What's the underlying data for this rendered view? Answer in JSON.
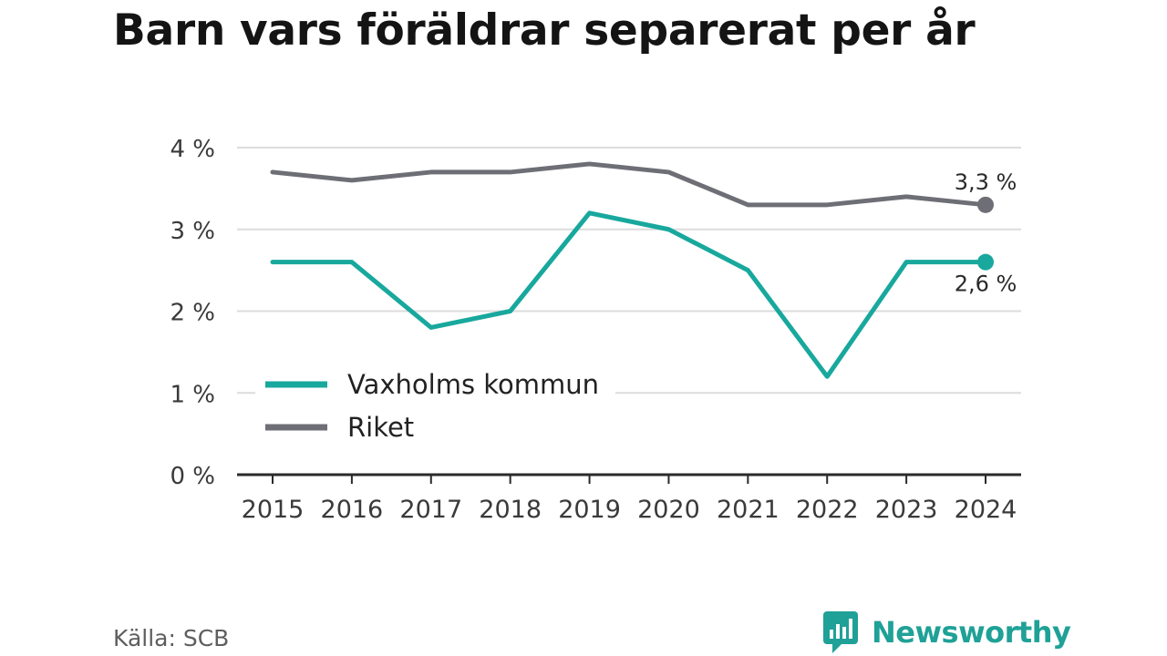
{
  "title": "Barn vars föräldrar separerat per år",
  "source": "Källa: SCB",
  "brand": {
    "name": "Newsworthy",
    "icon": "newsworthy-bar-chart-icon",
    "color": "#1fa197"
  },
  "chart_data": {
    "type": "line",
    "title": "Barn vars föräldrar separerat per år",
    "xlabel": "",
    "ylabel": "",
    "x": [
      "2015",
      "2016",
      "2017",
      "2018",
      "2019",
      "2020",
      "2021",
      "2022",
      "2023",
      "2024"
    ],
    "ylim": [
      0,
      4
    ],
    "y_ticks": [
      {
        "value": 0,
        "label": "0 %"
      },
      {
        "value": 1,
        "label": "1 %"
      },
      {
        "value": 2,
        "label": "2 %"
      },
      {
        "value": 3,
        "label": "3 %"
      },
      {
        "value": 4,
        "label": "4 %"
      }
    ],
    "grid": true,
    "legend_position": "lower-left",
    "series": [
      {
        "name": "Vaxholms kommun",
        "color": "#18a89d",
        "values": [
          2.6,
          2.6,
          1.8,
          2.0,
          3.2,
          3.0,
          2.5,
          1.2,
          2.6,
          2.6
        ],
        "end_label": "2,6 %"
      },
      {
        "name": "Riket",
        "color": "#6e6e76",
        "values": [
          3.7,
          3.6,
          3.7,
          3.7,
          3.8,
          3.7,
          3.3,
          3.3,
          3.4,
          3.3
        ],
        "end_label": "3,3 %"
      }
    ]
  }
}
